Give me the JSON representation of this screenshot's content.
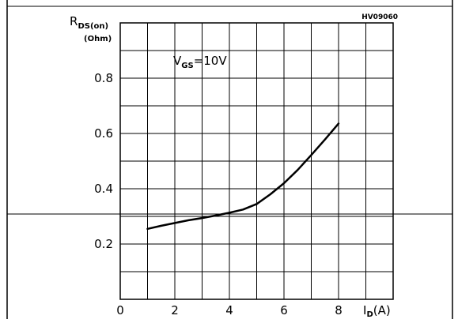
{
  "chart_data": {
    "type": "line",
    "figure_tag": "HV09060",
    "annotation": {
      "main": "V",
      "sub": "GS",
      "rest": "=10V"
    },
    "ylabel": {
      "main": "R",
      "sub": "DS(on)",
      "unit": "(Ohm)"
    },
    "xlabel": {
      "main": "I",
      "sub": "D",
      "rest": "(A)"
    },
    "xlim": [
      0,
      10
    ],
    "ylim": [
      0,
      1.0
    ],
    "x_ticks": [
      0,
      2,
      4,
      6,
      8
    ],
    "y_ticks": [
      0.2,
      0.4,
      0.6,
      0.8
    ],
    "grid": true,
    "series": [
      {
        "x": [
          1.0,
          1.5,
          2.0,
          2.5,
          3.0,
          3.5,
          4.0,
          4.5,
          5.0,
          5.5,
          6.0,
          6.5,
          7.0,
          7.5,
          8.0
        ],
        "y": [
          0.255,
          0.266,
          0.276,
          0.286,
          0.294,
          0.303,
          0.313,
          0.325,
          0.345,
          0.38,
          0.42,
          0.468,
          0.522,
          0.578,
          0.636
        ]
      }
    ]
  }
}
